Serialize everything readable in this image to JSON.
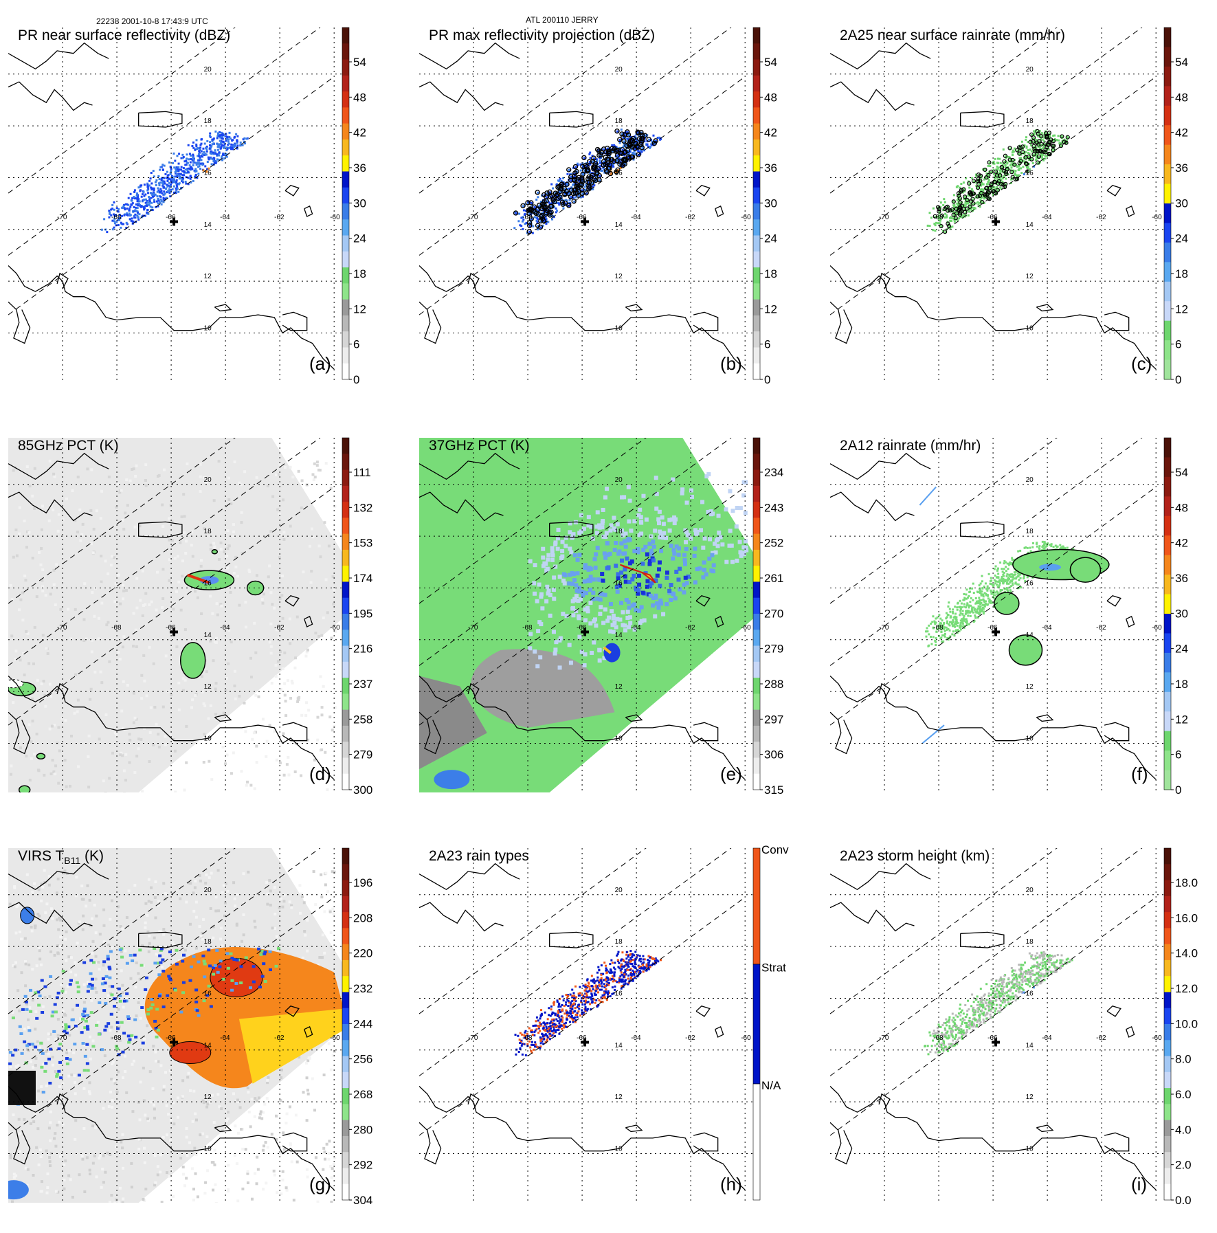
{
  "header": {
    "orbit_time": "22238 2001-10-8 17:43:9 UTC",
    "storm": "ATL 200110 JERRY"
  },
  "chart_data": [
    {
      "id": "a",
      "type": "heatmap",
      "title": "PR near surface reflectivity (dBZ)",
      "label": "(a)",
      "background": "pr",
      "colorbar_ticks": [
        "54",
        "48",
        "42",
        "36",
        "30",
        "24",
        "18",
        "12",
        "6",
        "0"
      ],
      "colorbar_colors": [
        "#5c1a0f",
        "#8b1a10",
        "#b2221a",
        "#d43013",
        "#f0561a",
        "#f5861c",
        "#f8b81f",
        "#fff200",
        "#0015c8",
        "#1a45f0",
        "#3a7de8",
        "#5aa8f0",
        "#a4c8f4",
        "#c8d8f8",
        "#6ed66e",
        "#8ee48a",
        "#a0a0a0",
        "#c0c0c0",
        "#e0e0e0",
        "#ffffff"
      ],
      "x_ticks": [
        "-70",
        "-68",
        "-66",
        "-64",
        "-62",
        "-60"
      ],
      "y_ticks": [
        "20",
        "18",
        "16",
        "14",
        "12",
        "10"
      ]
    },
    {
      "id": "b",
      "type": "heatmap",
      "title": "PR max reflectivity projection (dBZ)",
      "label": "(b)",
      "background": "pr",
      "colorbar_ticks": [
        "54",
        "48",
        "42",
        "36",
        "30",
        "24",
        "18",
        "12",
        "6",
        "0"
      ],
      "x_ticks": [
        "-70",
        "-68",
        "-66",
        "-64",
        "-62",
        "-60"
      ],
      "y_ticks": [
        "20",
        "18",
        "16",
        "14",
        "12",
        "10"
      ]
    },
    {
      "id": "c",
      "type": "heatmap",
      "title": "2A25 near surface rainrate (mm/hr)",
      "label": "(c)",
      "background": "pr",
      "colorbar_ticks": [
        "54",
        "48",
        "42",
        "36",
        "30",
        "24",
        "18",
        "12",
        "6",
        "0"
      ],
      "x_ticks": [
        "-70",
        "-68",
        "-66",
        "-64",
        "-62",
        "-60"
      ],
      "y_ticks": [
        "20",
        "18",
        "16",
        "14",
        "12",
        "10"
      ]
    },
    {
      "id": "d",
      "type": "heatmap",
      "title": "85GHz PCT (K)",
      "label": "(d)",
      "background": "tmi85",
      "colorbar_ticks": [
        "111",
        "132",
        "153",
        "174",
        "195",
        "216",
        "237",
        "258",
        "279",
        "300"
      ],
      "x_ticks": [
        "-70",
        "-68",
        "-66",
        "-64",
        "-62",
        "-60"
      ],
      "y_ticks": [
        "20",
        "18",
        "16",
        "14",
        "12",
        "10"
      ]
    },
    {
      "id": "e",
      "type": "heatmap",
      "title": "37GHz PCT (K)",
      "label": "(e)",
      "background": "tmi37",
      "colorbar_ticks": [
        "234",
        "243",
        "252",
        "261",
        "270",
        "279",
        "288",
        "297",
        "306",
        "315"
      ],
      "x_ticks": [
        "-70",
        "-68",
        "-66",
        "-64",
        "-62",
        "-60"
      ],
      "y_ticks": [
        "20",
        "18",
        "16",
        "14",
        "12",
        "10"
      ]
    },
    {
      "id": "f",
      "type": "heatmap",
      "title": "2A12 rainrate (mm/hr)",
      "label": "(f)",
      "background": "rain12",
      "colorbar_ticks": [
        "54",
        "48",
        "42",
        "36",
        "30",
        "24",
        "18",
        "12",
        "6",
        "0"
      ],
      "x_ticks": [
        "-70",
        "-68",
        "-66",
        "-64",
        "-62",
        "-60"
      ],
      "y_ticks": [
        "20",
        "18",
        "16",
        "14",
        "12",
        "10"
      ]
    },
    {
      "id": "g",
      "type": "heatmap",
      "title_main": "VIRS T",
      "title_sub": "B11",
      "title_tail": " (K)",
      "label": "(g)",
      "background": "virs",
      "colorbar_ticks": [
        "196",
        "208",
        "220",
        "232",
        "244",
        "256",
        "268",
        "280",
        "292",
        "304"
      ],
      "x_ticks": [
        "-70",
        "-68",
        "-66",
        "-64",
        "-62",
        "-60"
      ],
      "y_ticks": [
        "20",
        "18",
        "16",
        "14",
        "12",
        "10"
      ]
    },
    {
      "id": "h",
      "type": "heatmap",
      "title": "2A23 rain types",
      "label": "(h)",
      "background": "pr_types",
      "colorbar_ticks": [
        "Conv",
        "Strat",
        "N/A"
      ],
      "x_ticks": [
        "-70",
        "-68",
        "-66",
        "-64",
        "-62",
        "-60"
      ],
      "y_ticks": [
        "20",
        "18",
        "16",
        "14",
        "12",
        "10"
      ]
    },
    {
      "id": "i",
      "type": "heatmap",
      "title": "2A23 storm height (km)",
      "label": "(i)",
      "background": "pr_height",
      "colorbar_ticks": [
        "18.0",
        "16.0",
        "14.0",
        "12.0",
        "10.0",
        "8.0",
        "6.0",
        "4.0",
        "2.0",
        "0.0"
      ],
      "x_ticks": [
        "-70",
        "-68",
        "-66",
        "-64",
        "-62",
        "-60"
      ],
      "y_ticks": [
        "20",
        "18",
        "16",
        "14",
        "12",
        "10"
      ]
    }
  ]
}
